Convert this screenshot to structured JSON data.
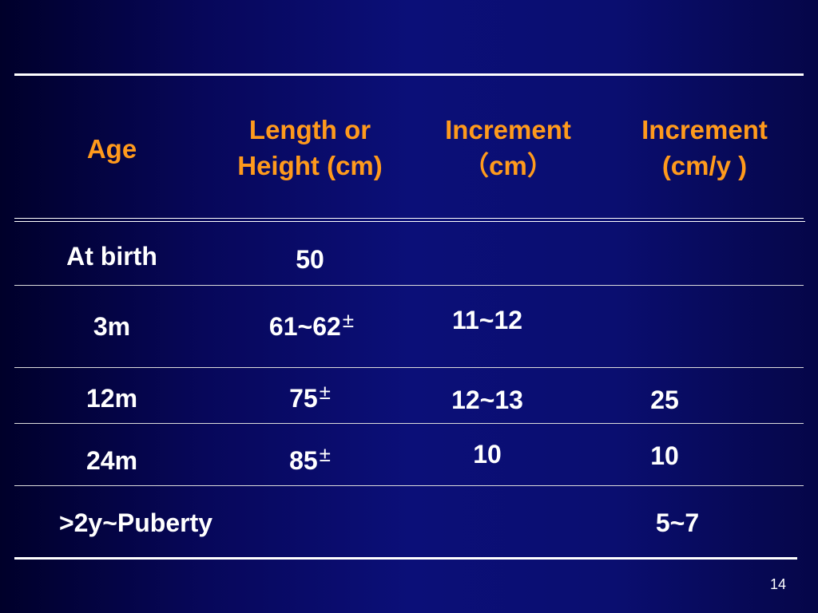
{
  "table": {
    "headers": {
      "age": "Age",
      "length_line1": "Length or",
      "length_line2": "Height (cm)",
      "inc_cm_line1": "Increment",
      "inc_cm_line2": "（cm）",
      "inc_cmy_line1": "Increment",
      "inc_cmy_line2": "(cm/y )"
    },
    "rows": [
      {
        "age": "At birth",
        "length": "50",
        "length_pm": "",
        "inc_cm": "",
        "inc_cmy": ""
      },
      {
        "age": "3m",
        "length": "61~62",
        "length_pm": "±",
        "inc_cm": "11~12",
        "inc_cmy": ""
      },
      {
        "age": "12m",
        "length": "75",
        "length_pm": "±",
        "inc_cm": "12~13",
        "inc_cmy": "25"
      },
      {
        "age": "24m",
        "length": "85",
        "length_pm": "±",
        "inc_cm": "10",
        "inc_cmy": "10"
      },
      {
        "age": ">2y~Puberty",
        "length": "",
        "length_pm": "",
        "inc_cm": "",
        "inc_cmy": "5~7"
      }
    ]
  },
  "page_number": "14",
  "colors": {
    "header_text": "#ff9a1c",
    "body_text": "#ffffff",
    "background": "#0b0f78"
  }
}
